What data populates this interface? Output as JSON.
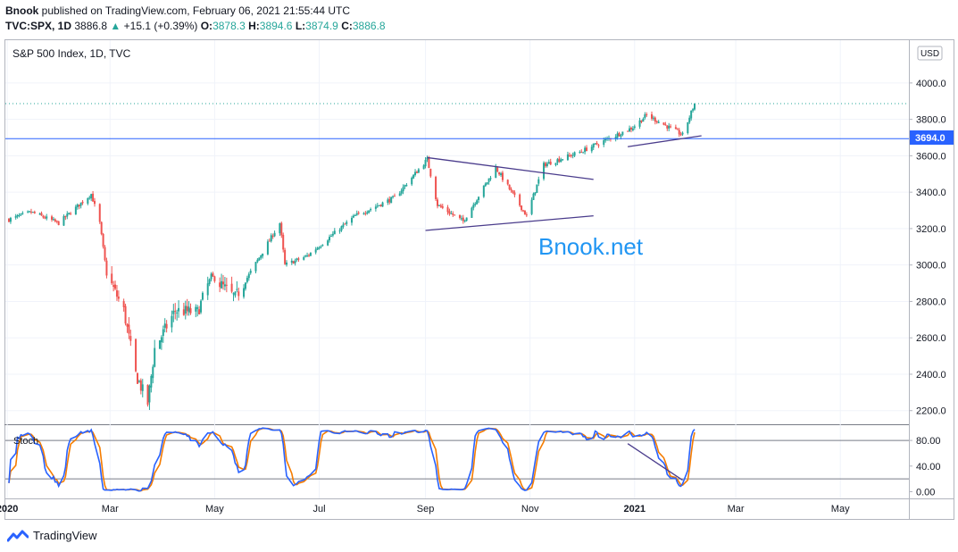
{
  "header": {
    "publisher": "Bnook",
    "published_text": " published on TradingView.com, February 06, 2021 21:55:44 UTC",
    "symbol": "TVC:SPX, 1D",
    "last": "3886.8",
    "change": "+15.1 (+0.39%)",
    "o_label": "O:",
    "o_val": "3878.3",
    "h_label": "H:",
    "h_val": "3894.6",
    "l_label": "L:",
    "l_val": "3874.9",
    "c_label": "C:",
    "c_val": "3886.8"
  },
  "chart": {
    "legend_title": "S&P 500 Index, 1D, TVC",
    "currency": "USD",
    "watermark": "Bnook.net",
    "price_tag": "3694.0",
    "stoch_label": "Stoch"
  },
  "footer": {
    "brand": "TradingView"
  },
  "colors": {
    "up": "#26a69a",
    "down": "#ef5350",
    "k_line": "#2962ff",
    "d_line": "#f57c00",
    "h_line": "#2962ff",
    "trend": "#4a3c8c",
    "watermark": "#2196f3"
  },
  "chart_data": {
    "type": "candlestick",
    "price_axis": {
      "ticks": [
        2200,
        2400,
        2600,
        2800,
        3000,
        3200,
        3400,
        3600,
        3800,
        4000
      ],
      "tick_labels": [
        "2200.0",
        "2400.0",
        "2600.0",
        "2800.0",
        "3000.0",
        "3200.0",
        "3400.0",
        "3600.0",
        "3800.0",
        "4000.0"
      ],
      "range": [
        2130,
        4230
      ]
    },
    "time_axis": {
      "labels": [
        "2020",
        "Mar",
        "May",
        "Jul",
        "Sep",
        "Nov",
        "2021",
        "Mar",
        "May"
      ]
    },
    "close_path": [
      [
        "2020-01-02",
        3250
      ],
      [
        "2020-01-15",
        3290
      ],
      [
        "2020-01-31",
        3230
      ],
      [
        "2020-02-19",
        3390
      ],
      [
        "2020-02-24",
        3230
      ],
      [
        "2020-02-28",
        2950
      ],
      [
        "2020-03-09",
        2750
      ],
      [
        "2020-03-16",
        2400
      ],
      [
        "2020-03-23",
        2240
      ],
      [
        "2020-03-27",
        2540
      ],
      [
        "2020-04-08",
        2750
      ],
      [
        "2020-04-21",
        2740
      ],
      [
        "2020-04-29",
        2940
      ],
      [
        "2020-05-13",
        2820
      ],
      [
        "2020-06-08",
        3230
      ],
      [
        "2020-06-11",
        3000
      ],
      [
        "2020-06-24",
        3050
      ],
      [
        "2020-07-22",
        3270
      ],
      [
        "2020-08-14",
        3370
      ],
      [
        "2020-09-02",
        3580
      ],
      [
        "2020-09-08",
        3330
      ],
      [
        "2020-09-23",
        3240
      ],
      [
        "2020-10-12",
        3535
      ],
      [
        "2020-10-30",
        3270
      ],
      [
        "2020-11-09",
        3550
      ],
      [
        "2020-11-30",
        3620
      ],
      [
        "2020-12-31",
        3756
      ],
      [
        "2021-01-08",
        3824
      ],
      [
        "2021-01-29",
        3714
      ],
      [
        "2021-02-05",
        3886.8
      ]
    ],
    "horizontal_line": 3694.0,
    "last_close_dotted": 3886.8,
    "trend_lines": [
      {
        "from": [
          "2020-09-02",
          3590
        ],
        "to": [
          "2020-12-08",
          3470
        ]
      },
      {
        "from": [
          "2020-09-01",
          3190
        ],
        "to": [
          "2020-12-08",
          3270
        ]
      },
      {
        "from": [
          "2020-12-28",
          3650
        ],
        "to": [
          "2021-02-09",
          3710
        ]
      }
    ],
    "stochastic": {
      "axis_ticks": [
        0,
        40,
        80
      ],
      "axis_labels": [
        "0.00",
        "40.00",
        "80.00"
      ],
      "levels": [
        20,
        80
      ],
      "trend_line": {
        "from": [
          "2020-12-28",
          75
        ],
        "to": [
          "2021-01-29",
          18
        ]
      }
    }
  }
}
